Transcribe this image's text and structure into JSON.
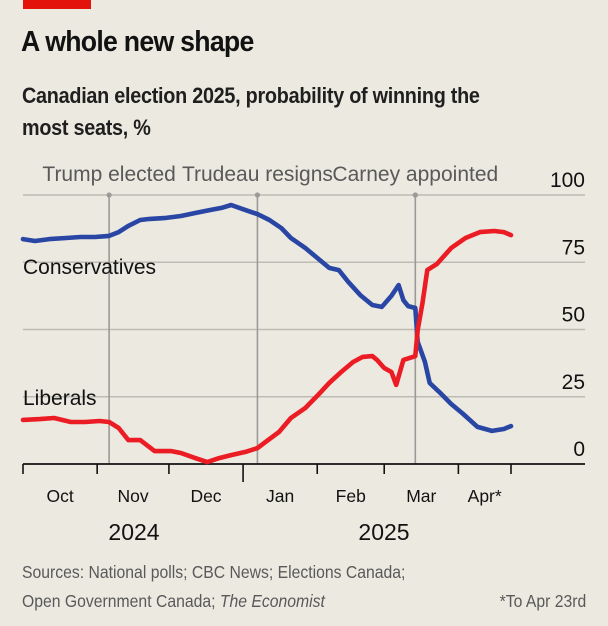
{
  "header": {
    "title": "A whole new shape",
    "subtitle": "Canadian election 2025, probability of winning the most seats, %"
  },
  "footer": {
    "sources_prefix": "Sources: National polls; CBC News; Elections Canada; Open Government Canada; ",
    "sources_italic": "The Economist",
    "footnote": "*To Apr 23rd"
  },
  "colors": {
    "brand_red": "#e3120b",
    "conservatives": "#2a46a4",
    "liberals": "#eb1c24",
    "background": "#ebe9e0",
    "grid": "#bdbcb4"
  },
  "chart_data": {
    "type": "line",
    "title": "A whole new shape",
    "subtitle": "Canadian election 2025, probability of winning the most seats, %",
    "xlabel": "",
    "ylabel": "",
    "x_unit": "days since 2024-10-01",
    "xlim": [
      0,
      204
    ],
    "ylim": [
      0,
      100
    ],
    "yticks": [
      0,
      25,
      50,
      75,
      100
    ],
    "ytick_labels": [
      "0",
      "25",
      "50",
      "75",
      "100"
    ],
    "y_axis_side": "right",
    "grid": true,
    "month_ticks": [
      {
        "label": "Oct",
        "start": 0,
        "end": 31
      },
      {
        "label": "Nov",
        "start": 31,
        "end": 61
      },
      {
        "label": "Dec",
        "start": 61,
        "end": 92
      },
      {
        "label": "Jan",
        "start": 92,
        "end": 123
      },
      {
        "label": "Feb",
        "start": 123,
        "end": 151
      },
      {
        "label": "Mar",
        "start": 151,
        "end": 182
      },
      {
        "label": "Apr*",
        "start": 182,
        "end": 204
      }
    ],
    "year_boundary": 92,
    "year_labels": [
      {
        "label": "2024",
        "start": 0,
        "end": 92
      },
      {
        "label": "2025",
        "start": 92,
        "end": 204
      }
    ],
    "events": [
      {
        "label": "Trump elected",
        "day": 36
      },
      {
        "label": "Trudeau resigns",
        "day": 98
      },
      {
        "label": "Carney appointed",
        "day": 164
      }
    ],
    "series": [
      {
        "name": "Conservatives",
        "color": "#2a46a4",
        "x": [
          0,
          5,
          11,
          18,
          24,
          30,
          36,
          40,
          44,
          49,
          53,
          59,
          66,
          72,
          78,
          83,
          87,
          93,
          98,
          103,
          108,
          112,
          118,
          123,
          128,
          132,
          136,
          141,
          146,
          150,
          154,
          157,
          159,
          161,
          164,
          165,
          168,
          170,
          174,
          179,
          184,
          190,
          196,
          201,
          204
        ],
        "values": [
          83.6,
          82.9,
          83.6,
          84.0,
          84.4,
          84.4,
          84.8,
          86.2,
          88.5,
          90.7,
          91.1,
          91.4,
          92.2,
          93.3,
          94.4,
          95.2,
          96.3,
          94.4,
          92.9,
          90.7,
          87.7,
          84.0,
          80.3,
          76.6,
          72.9,
          72.1,
          67.7,
          62.8,
          59.1,
          58.4,
          62.5,
          66.5,
          60.9,
          58.7,
          58.0,
          45.4,
          38.0,
          30.1,
          26.8,
          22.3,
          18.6,
          13.8,
          12.3,
          13.0,
          14.1
        ]
      },
      {
        "name": "Liberals",
        "color": "#eb1c24",
        "x": [
          0,
          7,
          13,
          20,
          26,
          32,
          36,
          40,
          44,
          49,
          55,
          62,
          66,
          72,
          77,
          82,
          87,
          93,
          98,
          102,
          107,
          112,
          118,
          123,
          128,
          133,
          138,
          142,
          146,
          148,
          151,
          154,
          156,
          159,
          163,
          164,
          165,
          167,
          169,
          173,
          179,
          185,
          191,
          197,
          201,
          204
        ],
        "values": [
          16.4,
          16.7,
          17.1,
          15.6,
          15.6,
          16.0,
          15.6,
          13.4,
          8.9,
          8.9,
          4.8,
          4.8,
          4.1,
          2.2,
          0.7,
          2.2,
          3.3,
          4.5,
          5.9,
          8.6,
          11.9,
          17.1,
          20.8,
          25.3,
          30.1,
          34.2,
          37.9,
          39.8,
          40.1,
          38.7,
          35.7,
          34.2,
          29.4,
          38.7,
          39.8,
          40.1,
          49.8,
          59.9,
          72.1,
          74.3,
          80.3,
          84.0,
          86.2,
          86.6,
          86.2,
          85.1
        ]
      }
    ]
  }
}
